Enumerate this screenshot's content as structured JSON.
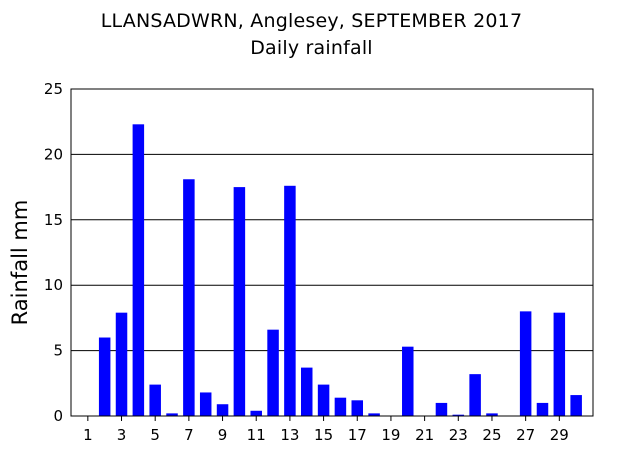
{
  "chart_data": {
    "type": "bar",
    "title": "LLANSADWRN, Anglesey, SEPTEMBER 2017",
    "subtitle": "Daily rainfall",
    "xlabel": "",
    "ylabel": "Rainfall mm",
    "ylim": [
      0,
      25
    ],
    "yticks": [
      "0",
      "5",
      "10",
      "15",
      "20",
      "25"
    ],
    "xticks": [
      "1",
      "3",
      "5",
      "7",
      "9",
      "11",
      "13",
      "15",
      "17",
      "19",
      "21",
      "23",
      "25",
      "27",
      "29"
    ],
    "grid": true,
    "bar_color": "#0000ff",
    "days": [
      1,
      2,
      3,
      4,
      5,
      6,
      7,
      8,
      9,
      10,
      11,
      12,
      13,
      14,
      15,
      16,
      17,
      18,
      19,
      20,
      21,
      22,
      23,
      24,
      25,
      26,
      27,
      28,
      29,
      30
    ],
    "values": [
      0,
      6.0,
      7.9,
      22.3,
      2.4,
      0.2,
      18.1,
      1.8,
      0.9,
      17.5,
      0.4,
      6.6,
      17.6,
      3.7,
      2.4,
      1.4,
      1.2,
      0.2,
      0,
      5.3,
      0,
      1.0,
      0.1,
      3.2,
      0.2,
      0,
      8.0,
      1.0,
      7.9,
      1.6
    ]
  }
}
